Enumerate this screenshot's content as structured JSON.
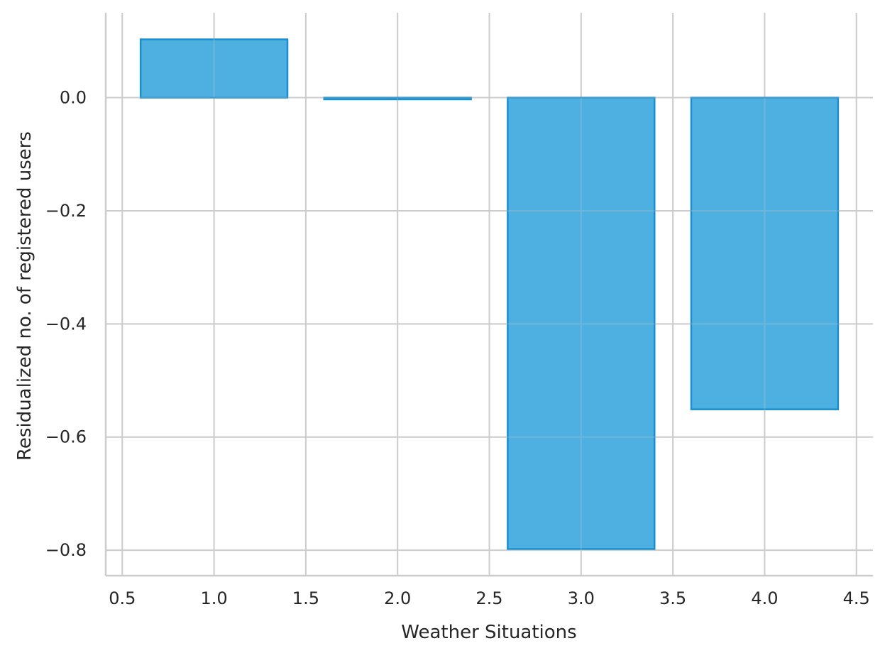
{
  "chart_data": {
    "type": "bar",
    "x": [
      1.0,
      2.0,
      3.0,
      4.0
    ],
    "values": [
      0.103,
      -0.003,
      -0.798,
      -0.551
    ],
    "bar_width": 0.8,
    "xlabel": "Weather Situations",
    "ylabel": "Residualized no. of registered users",
    "xlim": [
      0.41,
      4.59
    ],
    "ylim": [
      -0.845,
      0.15
    ],
    "xticks": [
      0.5,
      1.0,
      1.5,
      2.0,
      2.5,
      3.0,
      3.5,
      4.0,
      4.5
    ],
    "xtick_labels": [
      "0.5",
      "1.0",
      "1.5",
      "2.0",
      "2.5",
      "3.0",
      "3.5",
      "4.0",
      "4.5"
    ],
    "yticks": [
      0.0,
      -0.2,
      -0.4,
      -0.6,
      -0.8
    ],
    "ytick_labels": [
      "0.0",
      "−0.2",
      "−0.4",
      "−0.6",
      "−0.8"
    ],
    "grid": true,
    "colors": {
      "bar_fill": "#4aaee0",
      "bar_edge": "#1a8fd0",
      "grid": "#cccccc",
      "text": "#262626"
    }
  }
}
